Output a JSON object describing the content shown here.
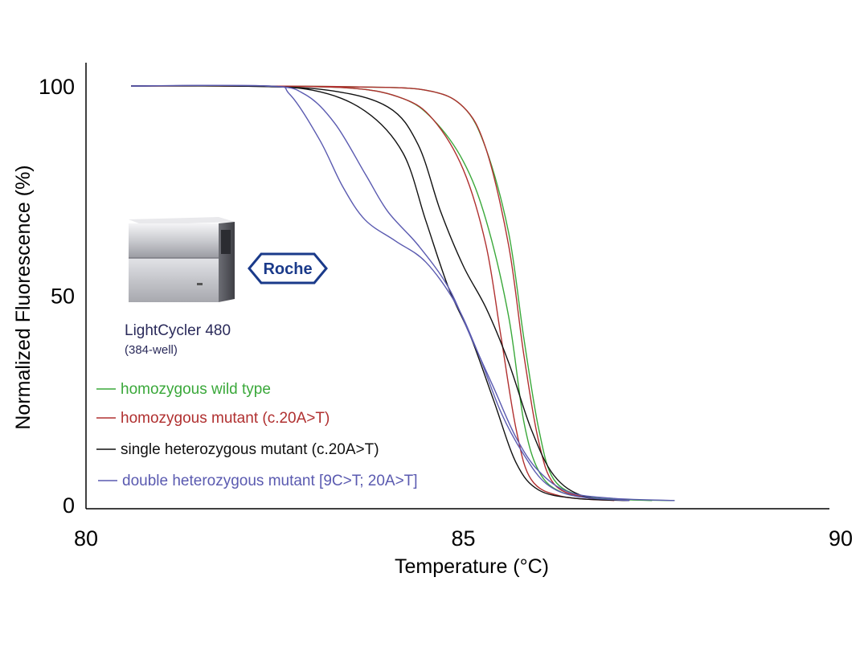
{
  "chart_data": {
    "type": "line",
    "title": "",
    "xlabel": "Temperature (°C)",
    "ylabel": "Normalized Fluorescence (%)",
    "xlim": [
      80,
      90
    ],
    "ylim": [
      0,
      100
    ],
    "xticks": [
      "80",
      "85",
      "90"
    ],
    "yticks": [
      "0",
      "50",
      "100"
    ],
    "grid": false,
    "legend_position": "bottom-left",
    "series": [
      {
        "name": "homozygous wild type",
        "color": "#3aa83a",
        "curves": [
          [
            [
              80.6,
              100
            ],
            [
              82,
              100
            ],
            [
              83.5,
              99.5
            ],
            [
              84.2,
              97
            ],
            [
              84.6,
              92
            ],
            [
              85.0,
              82
            ],
            [
              85.3,
              68
            ],
            [
              85.6,
              45
            ],
            [
              85.8,
              20
            ],
            [
              86.0,
              8
            ],
            [
              86.3,
              3
            ],
            [
              86.8,
              1.5
            ],
            [
              87.5,
              1
            ]
          ],
          [
            [
              80.6,
              100
            ],
            [
              82,
              100
            ],
            [
              83.5,
              99.8
            ],
            [
              84.5,
              99
            ],
            [
              85.0,
              95
            ],
            [
              85.3,
              85
            ],
            [
              85.6,
              65
            ],
            [
              85.8,
              40
            ],
            [
              86.0,
              18
            ],
            [
              86.2,
              6
            ],
            [
              86.6,
              2
            ],
            [
              87.2,
              1.2
            ],
            [
              87.8,
              1
            ]
          ]
        ]
      },
      {
        "name": "homozygous mutant (c.20A>T)",
        "color": "#b03030",
        "curves": [
          [
            [
              80.6,
              100
            ],
            [
              82,
              100
            ],
            [
              83.5,
              99.8
            ],
            [
              84.5,
              99
            ],
            [
              85.0,
              95
            ],
            [
              85.3,
              85
            ],
            [
              85.6,
              62
            ],
            [
              85.8,
              36
            ],
            [
              86.0,
              15
            ],
            [
              86.2,
              5
            ],
            [
              86.6,
              1.8
            ],
            [
              87.2,
              1
            ]
          ],
          [
            [
              80.6,
              100
            ],
            [
              82,
              100
            ],
            [
              83.5,
              99.5
            ],
            [
              84.2,
              97
            ],
            [
              84.6,
              92
            ],
            [
              85.0,
              80
            ],
            [
              85.3,
              62
            ],
            [
              85.5,
              40
            ],
            [
              85.7,
              18
            ],
            [
              85.9,
              6
            ],
            [
              86.3,
              2
            ],
            [
              87,
              1
            ]
          ]
        ]
      },
      {
        "name": "single heterozygous mutant (c.20A>T)",
        "color": "#111111",
        "curves": [
          [
            [
              80.6,
              100
            ],
            [
              82,
              100
            ],
            [
              83.2,
              99
            ],
            [
              84.0,
              95
            ],
            [
              84.4,
              86
            ],
            [
              84.7,
              70
            ],
            [
              85.0,
              57
            ],
            [
              85.3,
              47
            ],
            [
              85.6,
              34
            ],
            [
              85.9,
              18
            ],
            [
              86.2,
              7
            ],
            [
              86.6,
              2
            ],
            [
              87.2,
              1
            ]
          ],
          [
            [
              80.6,
              100
            ],
            [
              82,
              100
            ],
            [
              83,
              99
            ],
            [
              83.7,
              94
            ],
            [
              84.2,
              84
            ],
            [
              84.5,
              68
            ],
            [
              84.8,
              52
            ],
            [
              85.1,
              40
            ],
            [
              85.4,
              25
            ],
            [
              85.7,
              10
            ],
            [
              86.0,
              3.5
            ],
            [
              86.5,
              1.5
            ],
            [
              87.2,
              1
            ]
          ]
        ]
      },
      {
        "name": "double heterozygous mutant [9C>T; 20A>T]",
        "color": "#5a5ab0",
        "curves": [
          [
            [
              80.6,
              100
            ],
            [
              82.4,
              100
            ],
            [
              82.9,
              98
            ],
            [
              83.3,
              91
            ],
            [
              83.7,
              79
            ],
            [
              84.0,
              70
            ],
            [
              84.4,
              62
            ],
            [
              84.8,
              52
            ],
            [
              85.1,
              40
            ],
            [
              85.4,
              28
            ],
            [
              85.7,
              16
            ],
            [
              86.0,
              8
            ],
            [
              86.4,
              3
            ],
            [
              87,
              1.5
            ],
            [
              87.8,
              1
            ]
          ],
          [
            [
              80.6,
              100
            ],
            [
              82.4,
              100
            ],
            [
              82.7,
              98
            ],
            [
              83.1,
              87
            ],
            [
              83.4,
              76
            ],
            [
              83.7,
              68
            ],
            [
              84.1,
              63
            ],
            [
              84.5,
              58
            ],
            [
              84.9,
              48
            ],
            [
              85.2,
              36
            ],
            [
              85.5,
              22
            ],
            [
              85.8,
              12
            ],
            [
              86.1,
              5
            ],
            [
              86.5,
              2
            ],
            [
              87.2,
              1
            ]
          ]
        ]
      }
    ]
  },
  "inset": {
    "brand": "Roche",
    "device_name": "LightCycler 480",
    "device_detail": "(384-well)"
  }
}
